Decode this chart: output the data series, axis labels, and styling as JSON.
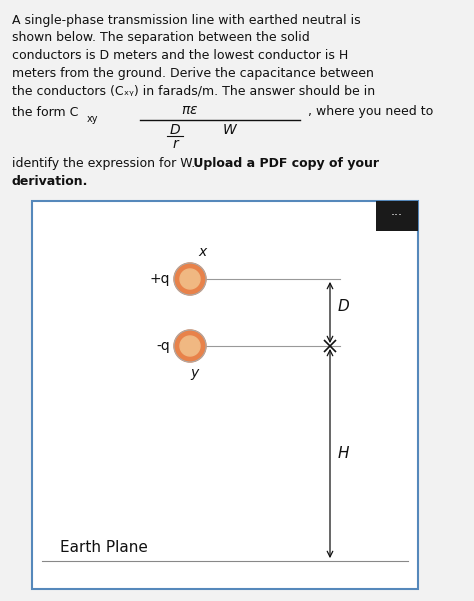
{
  "background_color": "#f2f2f2",
  "box_bg": "#ffffff",
  "box_border": "#5588bb",
  "conductor_fill_outer": "#e8824a",
  "conductor_fill_inner": "#f0b882",
  "conductor_edge": "#cccccc",
  "text_color": "#111111",
  "dots_box_bg": "#1a1a1a",
  "dots_color": "#ffffff",
  "figsize": [
    4.74,
    6.01
  ],
  "dpi": 100,
  "para_lines": [
    "A single-phase transmission line with earthed neutral is",
    "shown below. The separation between the solid",
    "conductors is D meters and the lowest conductor is H",
    "meters from the ground. Derive the capacitance between",
    "the conductors (Cₓᵧ) in farads/m. The answer should be in"
  ]
}
